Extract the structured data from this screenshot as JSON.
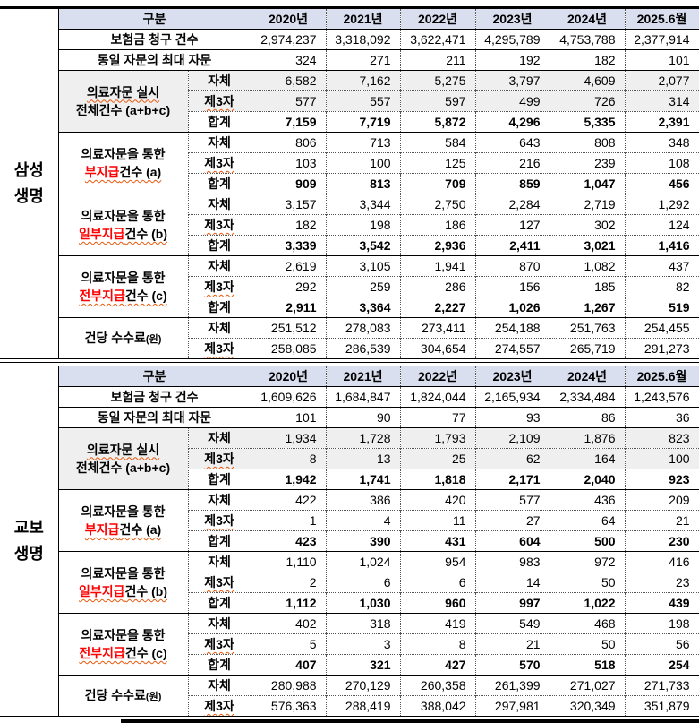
{
  "colors": {
    "header_bg": "#D9DFEE",
    "group_bg": "#EFEFEF",
    "red_text": "#FF0000",
    "wavy_underline": "#E8590C"
  },
  "header": {
    "category": "구분",
    "years": [
      "2020년",
      "2021년",
      "2022년",
      "2023년",
      "2024년",
      "2025.6월"
    ]
  },
  "sub_labels": {
    "self": "자체",
    "third": "제3자",
    "total": "합계"
  },
  "tables": [
    {
      "company_lines": [
        "삼성",
        "생명"
      ],
      "simple_rows": [
        {
          "label": "보험금 청구 건수",
          "values": [
            "2,974,237",
            "3,318,092",
            "3,622,471",
            "4,295,789",
            "4,753,788",
            "2,377,914"
          ]
        },
        {
          "label": "동일 자문의 최대 자문",
          "values": [
            "324",
            "271",
            "211",
            "192",
            "182",
            "101"
          ]
        }
      ],
      "groups": [
        {
          "label_lines": [
            [
              {
                "t": "의료자문 실시",
                "wavy": true
              }
            ],
            [
              {
                "t": "전체건수 (a+b+c)"
              }
            ]
          ],
          "gray_label": true,
          "rows": [
            {
              "sub": "self",
              "gray": true,
              "values": [
                "6,582",
                "7,162",
                "5,275",
                "3,797",
                "4,609",
                "2,077"
              ]
            },
            {
              "sub": "third",
              "gray": true,
              "values": [
                "577",
                "557",
                "597",
                "499",
                "726",
                "314"
              ]
            },
            {
              "sub": "total",
              "bold": true,
              "values": [
                "7,159",
                "7,719",
                "5,872",
                "4,296",
                "5,335",
                "2,391"
              ]
            }
          ]
        },
        {
          "label_lines": [
            [
              {
                "t": "의료자문을 통한"
              }
            ],
            [
              {
                "t": "부지급",
                "red": true,
                "wavy": true
              },
              {
                "t": "건수 (a)",
                "wavy": true
              }
            ]
          ],
          "rows": [
            {
              "sub": "self",
              "values": [
                "806",
                "713",
                "584",
                "643",
                "808",
                "348"
              ]
            },
            {
              "sub": "third",
              "values": [
                "103",
                "100",
                "125",
                "216",
                "239",
                "108"
              ]
            },
            {
              "sub": "total",
              "bold": true,
              "values": [
                "909",
                "813",
                "709",
                "859",
                "1,047",
                "456"
              ]
            }
          ]
        },
        {
          "label_lines": [
            [
              {
                "t": "의료자문을 통한"
              }
            ],
            [
              {
                "t": "일부지급",
                "red": true,
                "wavy": true
              },
              {
                "t": "건수 (b)",
                "wavy": true
              }
            ]
          ],
          "rows": [
            {
              "sub": "self",
              "values": [
                "3,157",
                "3,344",
                "2,750",
                "2,284",
                "2,719",
                "1,292"
              ]
            },
            {
              "sub": "third",
              "values": [
                "182",
                "198",
                "186",
                "127",
                "302",
                "124"
              ]
            },
            {
              "sub": "total",
              "bold": true,
              "values": [
                "3,339",
                "3,542",
                "2,936",
                "2,411",
                "3,021",
                "1,416"
              ]
            }
          ]
        },
        {
          "label_lines": [
            [
              {
                "t": "의료자문을 통한"
              }
            ],
            [
              {
                "t": "전부지급",
                "red": true,
                "wavy": true
              },
              {
                "t": "건수 (c)",
                "wavy": true
              }
            ]
          ],
          "rows": [
            {
              "sub": "self",
              "values": [
                "2,619",
                "3,105",
                "1,941",
                "870",
                "1,082",
                "437"
              ]
            },
            {
              "sub": "third",
              "values": [
                "292",
                "259",
                "286",
                "156",
                "185",
                "82"
              ]
            },
            {
              "sub": "total",
              "bold": true,
              "values": [
                "2,911",
                "3,364",
                "2,227",
                "1,026",
                "1,267",
                "519"
              ]
            }
          ]
        },
        {
          "label_lines": [
            [
              {
                "t": "건당 수수료"
              },
              {
                "t": "(원)",
                "small": true
              }
            ]
          ],
          "rows": [
            {
              "sub": "self",
              "values": [
                "251,512",
                "278,083",
                "273,411",
                "254,188",
                "251,763",
                "254,455"
              ]
            },
            {
              "sub": "third",
              "values": [
                "258,085",
                "286,539",
                "304,654",
                "274,557",
                "265,719",
                "291,273"
              ]
            }
          ]
        }
      ]
    },
    {
      "company_lines": [
        "교보",
        "생명"
      ],
      "simple_rows": [
        {
          "label": "보험금 청구 건수",
          "values": [
            "1,609,626",
            "1,684,847",
            "1,824,044",
            "2,165,934",
            "2,334,484",
            "1,243,576"
          ]
        },
        {
          "label": "동일 자문의 최대 자문",
          "values": [
            "101",
            "90",
            "77",
            "93",
            "86",
            "36"
          ]
        }
      ],
      "groups": [
        {
          "label_lines": [
            [
              {
                "t": "의료자문 실시",
                "wavy": true
              }
            ],
            [
              {
                "t": "전체건수 (a+b+c)"
              }
            ]
          ],
          "gray_label": true,
          "rows": [
            {
              "sub": "self",
              "gray": true,
              "values": [
                "1,934",
                "1,728",
                "1,793",
                "2,109",
                "1,876",
                "823"
              ]
            },
            {
              "sub": "third",
              "gray": true,
              "values": [
                "8",
                "13",
                "25",
                "62",
                "164",
                "100"
              ]
            },
            {
              "sub": "total",
              "bold": true,
              "values": [
                "1,942",
                "1,741",
                "1,818",
                "2,171",
                "2,040",
                "923"
              ]
            }
          ]
        },
        {
          "label_lines": [
            [
              {
                "t": "의료자문을 통한"
              }
            ],
            [
              {
                "t": "부지급",
                "red": true,
                "wavy": true
              },
              {
                "t": "건수 (a)",
                "wavy": true
              }
            ]
          ],
          "rows": [
            {
              "sub": "self",
              "values": [
                "422",
                "386",
                "420",
                "577",
                "436",
                "209"
              ]
            },
            {
              "sub": "third",
              "values": [
                "1",
                "4",
                "11",
                "27",
                "64",
                "21"
              ]
            },
            {
              "sub": "total",
              "bold": true,
              "values": [
                "423",
                "390",
                "431",
                "604",
                "500",
                "230"
              ]
            }
          ]
        },
        {
          "label_lines": [
            [
              {
                "t": "의료자문을 통한"
              }
            ],
            [
              {
                "t": "일부지급",
                "red": true,
                "wavy": true
              },
              {
                "t": "건수 (b)",
                "wavy": true
              }
            ]
          ],
          "rows": [
            {
              "sub": "self",
              "values": [
                "1,110",
                "1,024",
                "954",
                "983",
                "972",
                "416"
              ]
            },
            {
              "sub": "third",
              "values": [
                "2",
                "6",
                "6",
                "14",
                "50",
                "23"
              ]
            },
            {
              "sub": "total",
              "bold": true,
              "values": [
                "1,112",
                "1,030",
                "960",
                "997",
                "1,022",
                "439"
              ]
            }
          ]
        },
        {
          "label_lines": [
            [
              {
                "t": "의료자문을 통한"
              }
            ],
            [
              {
                "t": "전부지급",
                "red": true,
                "wavy": true
              },
              {
                "t": "건수 (c)",
                "wavy": true
              }
            ]
          ],
          "rows": [
            {
              "sub": "self",
              "values": [
                "402",
                "318",
                "419",
                "549",
                "468",
                "198"
              ]
            },
            {
              "sub": "third",
              "values": [
                "5",
                "3",
                "8",
                "21",
                "50",
                "56"
              ]
            },
            {
              "sub": "total",
              "bold": true,
              "values": [
                "407",
                "321",
                "427",
                "570",
                "518",
                "254"
              ]
            }
          ]
        },
        {
          "label_lines": [
            [
              {
                "t": "건당 수수료"
              },
              {
                "t": "(원)",
                "small": true
              }
            ]
          ],
          "rows": [
            {
              "sub": "self",
              "values": [
                "280,988",
                "270,129",
                "260,358",
                "261,399",
                "271,027",
                "271,733"
              ]
            },
            {
              "sub": "third",
              "values": [
                "576,363",
                "288,419",
                "388,042",
                "297,981",
                "320,349",
                "351,879"
              ]
            }
          ]
        }
      ]
    }
  ]
}
